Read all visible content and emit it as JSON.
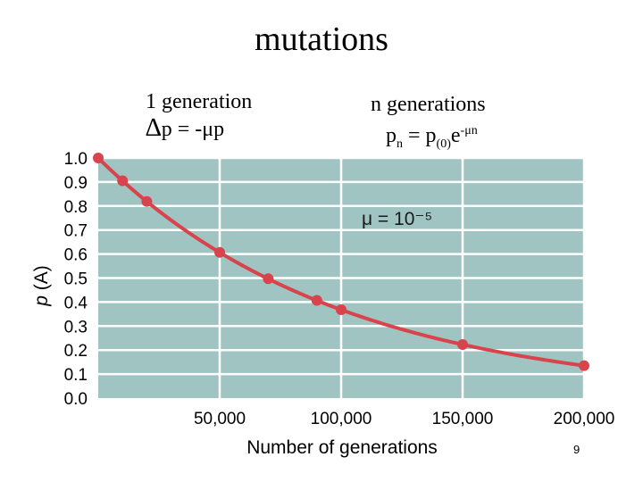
{
  "slide": {
    "title": "mutations",
    "eq1_line1": "1 generation",
    "eq1_delta": "∆",
    "eq1_line2": "p = -μp",
    "eq2_line1": "n generations",
    "eq2_lhs": "p",
    "eq2_lhs_sub": "n",
    "eq2_mid": " = p",
    "eq2_sub": "(0)",
    "eq2_base": "e",
    "eq2_exp": "-μn",
    "page_number": "9"
  },
  "chart_data": {
    "type": "line",
    "title": "",
    "xlabel": "Number of generations",
    "ylabel": "p (A)",
    "ylabel_italic": "p",
    "ylabel_rest": " (A)",
    "annotation": "μ = 10⁻⁵",
    "xlim": [
      0,
      200000
    ],
    "ylim": [
      0,
      1.0
    ],
    "x_ticks": [
      50000,
      100000,
      150000,
      200000
    ],
    "x_tick_labels": [
      "50,000",
      "100,000",
      "150,000",
      "200,000"
    ],
    "y_ticks": [
      0,
      0.1,
      0.2,
      0.3,
      0.4,
      0.5,
      0.6,
      0.7,
      0.8,
      0.9,
      1.0
    ],
    "y_tick_labels": [
      "0.0",
      "0.1",
      "0.2",
      "0.3",
      "0.4",
      "0.5",
      "0.6",
      "0.7",
      "0.8",
      "0.9",
      "1.0"
    ],
    "mu": 1e-05,
    "points": [
      {
        "x": 0,
        "y": 1.0
      },
      {
        "x": 10000,
        "y": 0.905
      },
      {
        "x": 20000,
        "y": 0.819
      },
      {
        "x": 50000,
        "y": 0.607
      },
      {
        "x": 70000,
        "y": 0.497
      },
      {
        "x": 90000,
        "y": 0.407
      },
      {
        "x": 100000,
        "y": 0.368
      },
      {
        "x": 150000,
        "y": 0.223
      },
      {
        "x": 200000,
        "y": 0.135
      }
    ],
    "colors": {
      "plot_bg": "#a0c4c2",
      "grid": "#ffffff",
      "line": "#d9434b",
      "marker": "#d9434b"
    },
    "grid": true
  }
}
